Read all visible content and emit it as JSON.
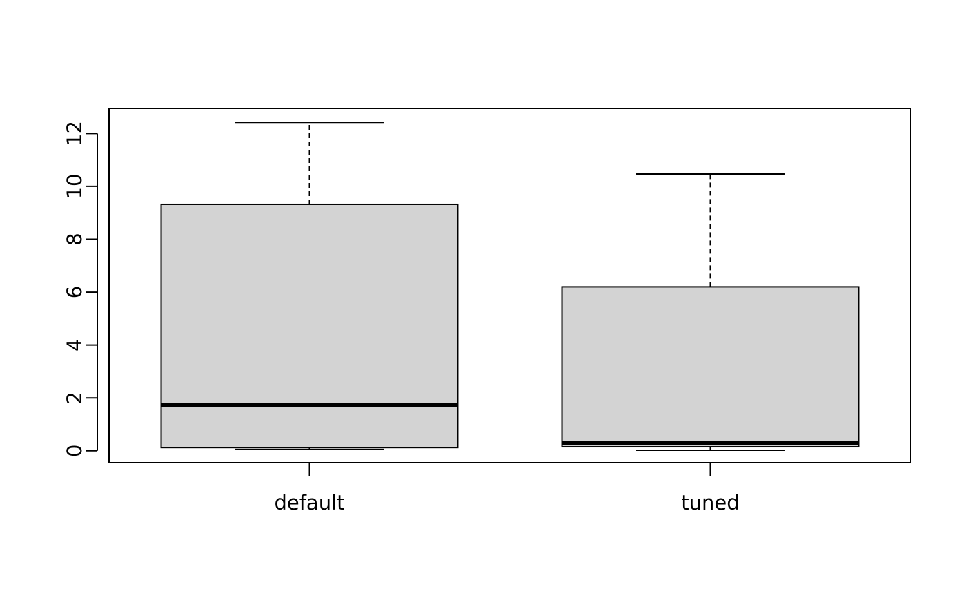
{
  "chart_data": {
    "type": "boxplot",
    "title": "",
    "xlabel": "",
    "ylabel": "",
    "categories": [
      "default",
      "tuned"
    ],
    "boxes": [
      {
        "category": "default",
        "whisker_low": 0.05,
        "q1": 0.12,
        "median": 1.72,
        "q3": 9.32,
        "whisker_high": 12.42
      },
      {
        "category": "tuned",
        "whisker_low": 0.02,
        "q1": 0.15,
        "median": 0.3,
        "q3": 6.2,
        "whisker_high": 10.47
      }
    ],
    "ylim": [
      -0.45,
      12.95
    ],
    "yticks": [
      0,
      2,
      4,
      6,
      8,
      10,
      12
    ],
    "ytick_labels": [
      "0",
      "2",
      "4",
      "6",
      "8",
      "10",
      "12"
    ],
    "grid": false,
    "box_fill": "#d3d3d3",
    "line_color": "#000000"
  }
}
